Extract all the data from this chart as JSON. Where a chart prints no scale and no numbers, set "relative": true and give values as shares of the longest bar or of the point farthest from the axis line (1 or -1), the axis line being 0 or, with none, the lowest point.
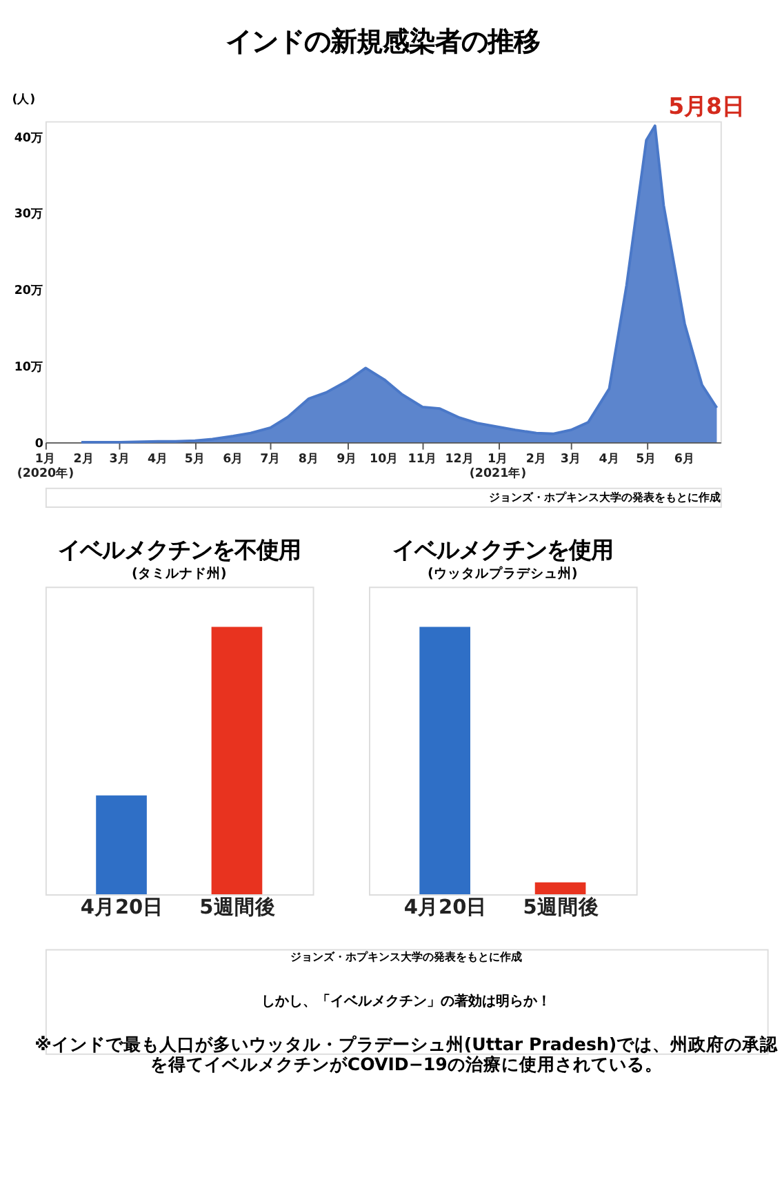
{
  "chart_data": [
    {
      "type": "area",
      "title": "インドの新規感染者の推移",
      "ylabel": "(人)",
      "x": [
        "2020-01-30",
        "2020-03-01",
        "2020-04-01",
        "2020-04-15",
        "2020-05-01",
        "2020-05-15",
        "2020-06-01",
        "2020-06-15",
        "2020-07-01",
        "2020-07-15",
        "2020-08-01",
        "2020-08-15",
        "2020-09-01",
        "2020-09-16",
        "2020-10-01",
        "2020-10-15",
        "2020-11-01",
        "2020-11-15",
        "2020-12-01",
        "2020-12-15",
        "2021-01-01",
        "2021-01-15",
        "2021-02-01",
        "2021-02-15",
        "2021-03-01",
        "2021-03-15",
        "2021-04-01",
        "2021-04-15",
        "2021-05-01",
        "2021-05-08",
        "2021-05-15",
        "2021-06-01",
        "2021-06-15",
        "2021-06-27"
      ],
      "series": [
        {
          "color": "#4a78c8",
          "values": [
            0,
            0,
            0.1,
            0.1,
            0.2,
            0.4,
            0.8,
            1.2,
            1.9,
            3.3,
            5.7,
            6.5,
            8.0,
            9.7,
            8.2,
            6.3,
            4.6,
            4.4,
            3.2,
            2.5,
            2.0,
            1.6,
            1.2,
            1.1,
            1.6,
            2.6,
            7.0,
            20.5,
            39.5,
            41.4,
            31.0,
            15.5,
            7.5,
            4.5
          ]
        }
      ],
      "xlim": [
        "2020-01-01",
        "2021-06-30"
      ],
      "xticks": [
        {
          "value": "2020-01-01",
          "label": "1月\n(2020年)"
        },
        {
          "value": "2020-02-01",
          "label": "2月"
        },
        {
          "value": "2020-03-01",
          "label": "3月"
        },
        {
          "value": "2020-04-01",
          "label": "4月"
        },
        {
          "value": "2020-05-01",
          "label": "5月"
        },
        {
          "value": "2020-06-01",
          "label": "6月"
        },
        {
          "value": "2020-07-01",
          "label": "7月"
        },
        {
          "value": "2020-08-01",
          "label": "8月"
        },
        {
          "value": "2020-09-01",
          "label": "9月"
        },
        {
          "value": "2020-10-01",
          "label": "10月"
        },
        {
          "value": "2020-11-01",
          "label": "11月"
        },
        {
          "value": "2020-12-01",
          "label": "12月"
        },
        {
          "value": "2021-01-01",
          "label": "1月\n(2021年)"
        },
        {
          "value": "2021-02-01",
          "label": "2月"
        },
        {
          "value": "2021-03-01",
          "label": "3月"
        },
        {
          "value": "2021-04-01",
          "label": "4月"
        },
        {
          "value": "2021-05-01",
          "label": "5月"
        },
        {
          "value": "2021-06-01",
          "label": "6月"
        }
      ],
      "ylim": [
        0,
        42
      ],
      "yticks": [
        0,
        {
          "value": 10,
          "label": "10万"
        },
        {
          "value": 20,
          "label": "20万"
        },
        {
          "value": 30,
          "label": "30万"
        },
        {
          "value": 40,
          "label": "40万"
        }
      ],
      "grid": false,
      "annotations": [
        {
          "text": "5月8日",
          "x": "2021-05-08",
          "y": 41.4
        },
        "ジョンズ・ホプキンス大学の発表をもとに作成"
      ]
    },
    {
      "type": "bar",
      "title": "イベルメクチンを不使用",
      "subtitle": "(タミルナド州)",
      "relative": true,
      "categories": [
        "4月20日",
        "5週間後"
      ],
      "values": [
        0.37,
        1
      ],
      "colors": [
        "#2f6fc6",
        "#e8331f"
      ]
    },
    {
      "type": "bar",
      "title": "イベルメクチンを使用",
      "subtitle": "(ウッタルプラデシュ州)",
      "relative": true,
      "categories": [
        "4月20日",
        "5週間後"
      ],
      "values": [
        1,
        0.045
      ],
      "colors": [
        "#2f6fc6",
        "#e8331f"
      ],
      "annotations": [
        "ジョンズ・ホプキンス大学の発表をもとに作成",
        "しかし、「イベルメクチン」の著効は明らか！",
        "※インドで最も人口が多いウッタル・プラデーシュ州(Uttar Pradesh)では、州政府の承認を得てイベルメクチンがCOVID−19の治療に使用されている。"
      ]
    }
  ]
}
